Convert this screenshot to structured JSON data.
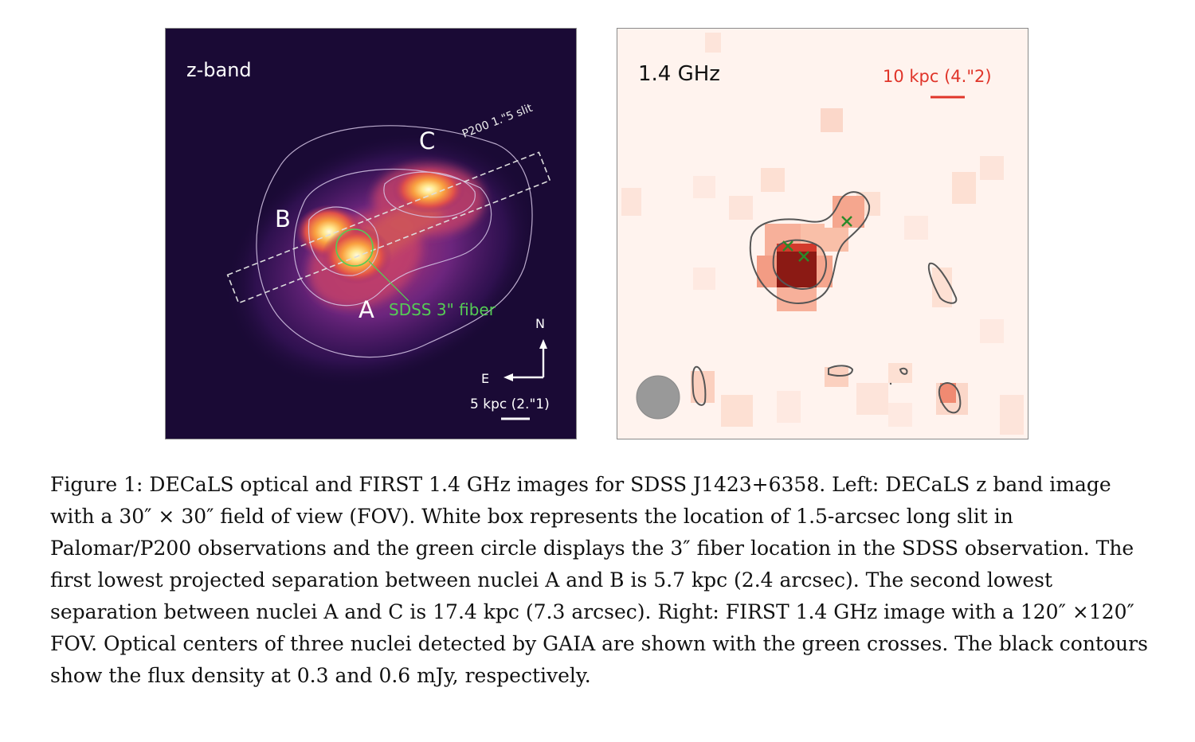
{
  "left_panel": {
    "band_label": "z-band",
    "nucleus_labels": [
      "A",
      "B",
      "C"
    ],
    "slit_label": "P200 1.\"5 slit",
    "fiber_label": "SDSS 3\" fiber",
    "compass": {
      "north": "N",
      "east": "E"
    },
    "scale_label": "5 kpc (2.\"1)",
    "colors": {
      "background": "#1a0a35",
      "slit": "#dddddd",
      "fiber": "#55cc55",
      "text": "#ffffff"
    }
  },
  "right_panel": {
    "freq_label": "1.4 GHz",
    "scale_label": "10 kpc (4.\"2)",
    "colors": {
      "background": "#fff3ee",
      "peak": "#8b1a14",
      "contour": "#555555",
      "cross": "#2a8a2a",
      "scale": "#e0352a",
      "beam": "#999999"
    }
  },
  "caption": "Figure 1: DECaLS optical and FIRST 1.4 GHz images for SDSS J1423+6358. Left: DECaLS z band image with a 30″ × 30″ field of view (FOV). White box represents the location of 1.5-arcsec long slit in Palomar/P200 observations and the green circle displays the 3″ fiber location in the SDSS observation. The first lowest projected separation between nuclei A and B is 5.7 kpc (2.4 arcsec). The second lowest separation between nuclei A and C is 17.4 kpc (7.3 arcsec). Right: FIRST 1.4 GHz image with a 120″ ×120″ FOV. Optical centers of three nuclei detected by GAIA are shown with the green crosses. The black contours show the flux density at 0.3 and 0.6 mJy, respectively."
}
